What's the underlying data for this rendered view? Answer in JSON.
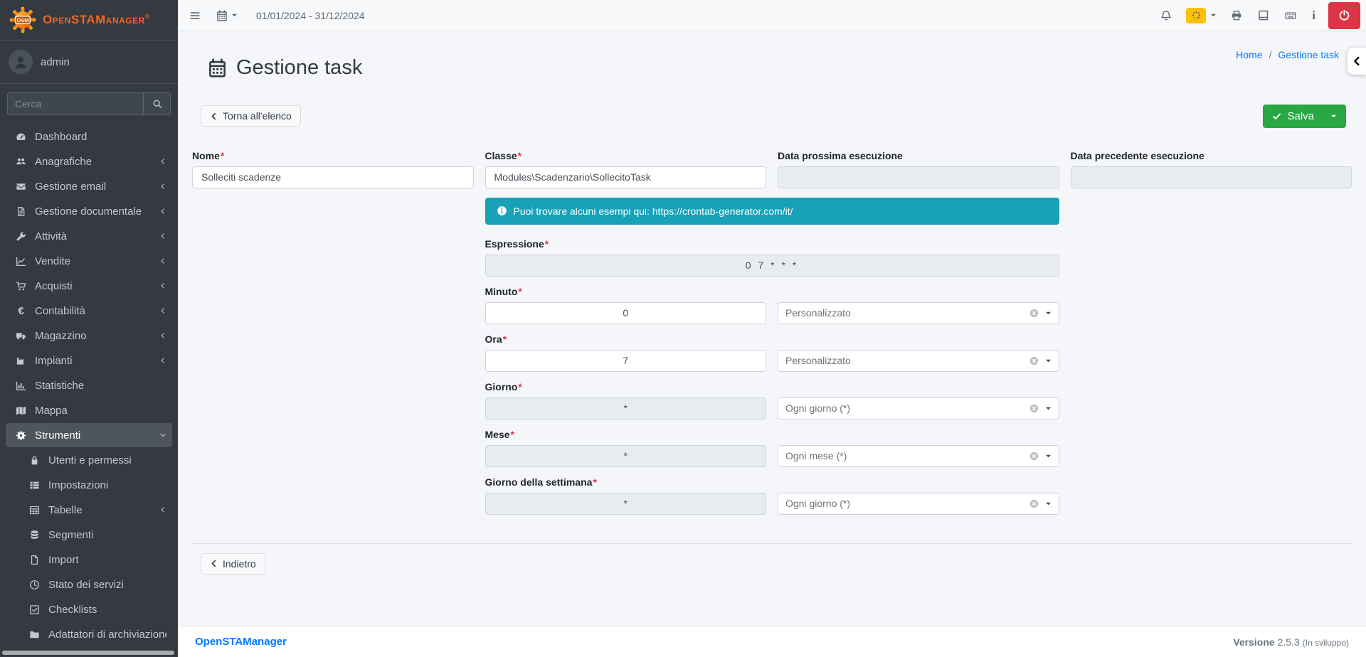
{
  "ui": {
    "required_mark": "*"
  },
  "brand": {
    "name": "OpenSTAManager",
    "logo_text": "OSM",
    "registered_mark": "®"
  },
  "sidebar": {
    "user": {
      "name": "admin"
    },
    "search_placeholder": "Cerca",
    "items": [
      {
        "id": "dashboard",
        "label": "Dashboard",
        "icon": "tachometer"
      },
      {
        "id": "anagrafiche",
        "label": "Anagrafiche",
        "icon": "users",
        "chevron": "left"
      },
      {
        "id": "gestione-email",
        "label": "Gestione email",
        "icon": "envelope",
        "chevron": "left"
      },
      {
        "id": "gestione-documentale",
        "label": "Gestione documentale",
        "icon": "file-lines",
        "chevron": "left"
      },
      {
        "id": "attivita",
        "label": "Attività",
        "icon": "wrench",
        "chevron": "left"
      },
      {
        "id": "vendite",
        "label": "Vendite",
        "icon": "chart-line",
        "chevron": "left"
      },
      {
        "id": "acquisti",
        "label": "Acquisti",
        "icon": "cart",
        "chevron": "left"
      },
      {
        "id": "contabilita",
        "label": "Contabilità",
        "icon": "euro",
        "chevron": "left"
      },
      {
        "id": "magazzino",
        "label": "Magazzino",
        "icon": "truck",
        "chevron": "left"
      },
      {
        "id": "impianti",
        "label": "Impianti",
        "icon": "industry",
        "chevron": "left"
      },
      {
        "id": "statistiche",
        "label": "Statistiche",
        "icon": "chart-bar"
      },
      {
        "id": "mappa",
        "label": "Mappa",
        "icon": "map"
      },
      {
        "id": "strumenti",
        "label": "Strumenti",
        "icon": "gear",
        "active": true,
        "chevron": "down"
      },
      {
        "id": "utenti-e-permessi",
        "label": "Utenti e permessi",
        "icon": "lock",
        "child": true
      },
      {
        "id": "impostazioni",
        "label": "Impostazioni",
        "icon": "th-list",
        "child": true
      },
      {
        "id": "tabelle",
        "label": "Tabelle",
        "icon": "table",
        "child": true,
        "chevron": "left"
      },
      {
        "id": "segmenti",
        "label": "Segmenti",
        "icon": "database",
        "child": true
      },
      {
        "id": "import",
        "label": "Import",
        "icon": "file",
        "child": true
      },
      {
        "id": "stato-dei-servizi",
        "label": "Stato dei servizi",
        "icon": "clock",
        "child": true
      },
      {
        "id": "checklists",
        "label": "Checklists",
        "icon": "check-square",
        "child": true
      },
      {
        "id": "adattatori-di-archiviazione",
        "label": "Adattatori di archiviazione",
        "icon": "folder",
        "child": true
      }
    ]
  },
  "navbar": {
    "date_range": "01/01/2024 - 31/12/2024"
  },
  "header": {
    "title": "Gestione task",
    "breadcrumb": [
      {
        "label": "Home"
      },
      {
        "label": "Gestione task"
      }
    ],
    "breadcrumb_separator": "/"
  },
  "toolbar": {
    "back_label": "Torna all'elenco",
    "save_label": "Salva"
  },
  "form": {
    "nome": {
      "label": "Nome",
      "value": "Solleciti scadenze"
    },
    "classe": {
      "label": "Classe",
      "value": "Modules\\Scadenzario\\SollecitoTask"
    },
    "data_prossima": {
      "label": "Data prossima esecuzione",
      "value": ""
    },
    "data_precedente": {
      "label": "Data precedente esecuzione",
      "value": ""
    },
    "info_text": "Puoi trovare alcuni esempi qui: https://crontab-generator.com/it/",
    "espressione": {
      "label": "Espressione",
      "value": "0 7 * * *"
    },
    "minuto": {
      "label": "Minuto",
      "value": "0",
      "select_value": "Personalizzato"
    },
    "ora": {
      "label": "Ora",
      "value": "7",
      "select_value": "Personalizzato"
    },
    "giorno": {
      "label": "Giorno",
      "value": "*",
      "select_value": "Ogni giorno (*)"
    },
    "mese": {
      "label": "Mese",
      "value": "*",
      "select_value": "Ogni mese (*)"
    },
    "giorno_settimana": {
      "label": "Giorno della settimana",
      "value": "*",
      "select_value": "Ogni giorno (*)"
    }
  },
  "bottom": {
    "back_label": "Indietro"
  },
  "footer": {
    "brand": "OpenSTAManager",
    "version_label": "Versione",
    "version": "2.5.3",
    "version_note": "(In sviluppo)"
  }
}
